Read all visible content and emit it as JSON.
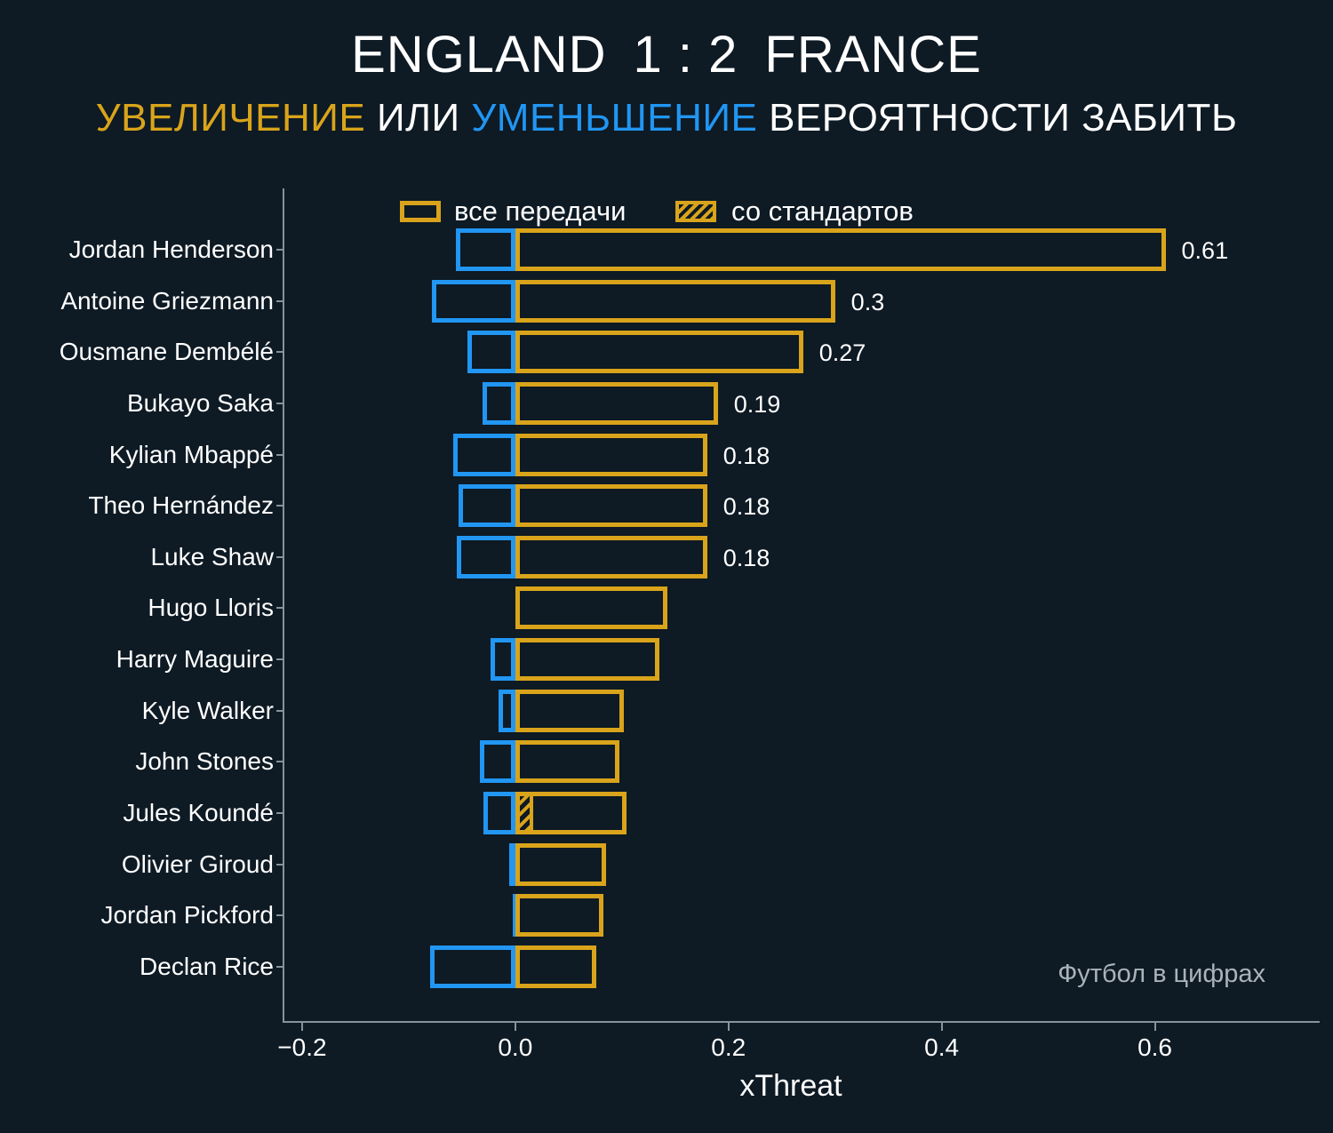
{
  "header": {
    "title": {
      "home": "ENGLAND",
      "score": "1 : 2",
      "away": "FRANCE"
    },
    "subtitle": {
      "increase_word": "УВЕЛИЧЕНИЕ",
      "or_word": "ИЛИ",
      "decrease_word": "УМЕНЬШЕНИЕ",
      "rest": "ВЕРОЯТНОСТИ ЗАБИТЬ"
    }
  },
  "legend": {
    "all_passes": "все передачи",
    "standards": "со стандартов"
  },
  "watermark": "Футбол в цифрах",
  "colors": {
    "increase": "#d9a41b",
    "decrease": "#2196f3",
    "background": "#0e1a24",
    "axis": "#85939b",
    "text": "#ffffff",
    "watermark": "#a9b3b9"
  },
  "chart_data": {
    "type": "bar",
    "orientation": "horizontal",
    "title": "ENGLAND 1 : 2 FRANCE",
    "subtitle": "УВЕЛИЧЕНИЕ ИЛИ УМЕНЬШЕНИЕ ВЕРОЯТНОСТИ ЗАБИТЬ",
    "xlabel": "xThreat",
    "xlim": [
      -0.2166,
      0.7546
    ],
    "x_ticks": [
      -0.2,
      0.0,
      0.2,
      0.4,
      0.6
    ],
    "x_tick_labels": [
      "−0.2",
      "0.0",
      "0.2",
      "0.4",
      "0.6"
    ],
    "grid": false,
    "legend_position": "top-inside",
    "players": [
      {
        "name": "Jordan Henderson",
        "increase": 0.61,
        "decrease": -0.056,
        "standards": 0,
        "label": "0.61"
      },
      {
        "name": "Antoine Griezmann",
        "increase": 0.3,
        "decrease": -0.078,
        "standards": 0,
        "label": "0.3"
      },
      {
        "name": "Ousmane Dembélé",
        "increase": 0.27,
        "decrease": -0.045,
        "standards": 0,
        "label": "0.27"
      },
      {
        "name": "Bukayo Saka",
        "increase": 0.19,
        "decrease": -0.031,
        "standards": 0,
        "label": "0.19"
      },
      {
        "name": "Kylian Mbappé",
        "increase": 0.18,
        "decrease": -0.058,
        "standards": 0,
        "label": "0.18"
      },
      {
        "name": "Theo Hernández",
        "increase": 0.18,
        "decrease": -0.053,
        "standards": 0,
        "label": "0.18"
      },
      {
        "name": "Luke Shaw",
        "increase": 0.18,
        "decrease": -0.055,
        "standards": 0,
        "label": "0.18"
      },
      {
        "name": "Hugo Lloris",
        "increase": 0.143,
        "decrease": 0,
        "standards": 0,
        "label": ""
      },
      {
        "name": "Harry Maguire",
        "increase": 0.135,
        "decrease": -0.023,
        "standards": 0,
        "label": ""
      },
      {
        "name": "Kyle Walker",
        "increase": 0.102,
        "decrease": -0.016,
        "standards": 0,
        "label": ""
      },
      {
        "name": "John Stones",
        "increase": 0.098,
        "decrease": -0.033,
        "standards": 0,
        "label": ""
      },
      {
        "name": "Jules Koundé",
        "increase": 0.104,
        "decrease": -0.03,
        "standards": 0.017,
        "label": ""
      },
      {
        "name": "Olivier Giroud",
        "increase": 0.085,
        "decrease": -0.006,
        "standards": 0,
        "label": ""
      },
      {
        "name": "Jordan Pickford",
        "increase": 0.083,
        "decrease": -0.002,
        "standards": 0,
        "label": ""
      },
      {
        "name": "Declan Rice",
        "increase": 0.076,
        "decrease": -0.08,
        "standards": 0,
        "label": ""
      }
    ]
  }
}
